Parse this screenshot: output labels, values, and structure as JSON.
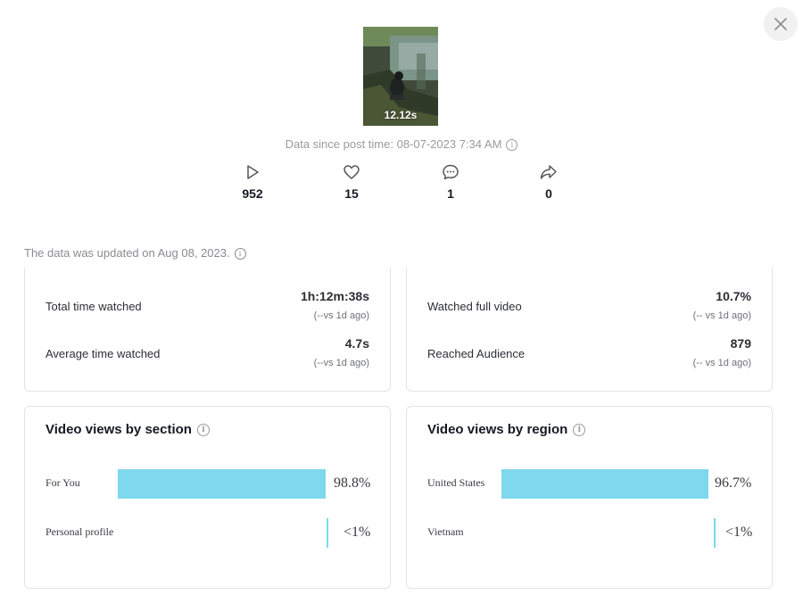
{
  "close_icon": "close-icon",
  "video": {
    "duration": "12.12s",
    "since_text": "Data since post time: 08-07-2023 7:34 AM"
  },
  "stats": [
    {
      "icon": "play-icon",
      "value": "952"
    },
    {
      "icon": "heart-icon",
      "value": "15"
    },
    {
      "icon": "comment-icon",
      "value": "1"
    },
    {
      "icon": "share-icon",
      "value": "0"
    }
  ],
  "updated_text": "The data was updated on Aug 08, 2023.",
  "metrics_left": [
    {
      "label": "Total time watched",
      "value": "1h:12m:38s",
      "delta": "(--vs 1d ago)"
    },
    {
      "label": "Average time watched",
      "value": "4.7s",
      "delta": "(--vs 1d ago)"
    }
  ],
  "metrics_right": [
    {
      "label": "Watched full video",
      "value": "10.7%",
      "delta": "(-- vs 1d ago)"
    },
    {
      "label": "Reached Audience",
      "value": "879",
      "delta": "(-- vs 1d ago)"
    }
  ],
  "section_card": {
    "title": "Video views by section",
    "rows": [
      {
        "label": "For You",
        "pct": "98.8%",
        "fraction": 0.988
      },
      {
        "label": "Personal profile",
        "pct": "<1%",
        "fraction": 0.008
      }
    ]
  },
  "region_card": {
    "title": "Video views by region",
    "rows": [
      {
        "label": "United States",
        "pct": "96.7%",
        "fraction": 0.967
      },
      {
        "label": "Vietnam",
        "pct": "<1%",
        "fraction": 0.004
      }
    ]
  },
  "colors": {
    "bar": "#7dd9eb",
    "muted": "#9a9ba1"
  }
}
